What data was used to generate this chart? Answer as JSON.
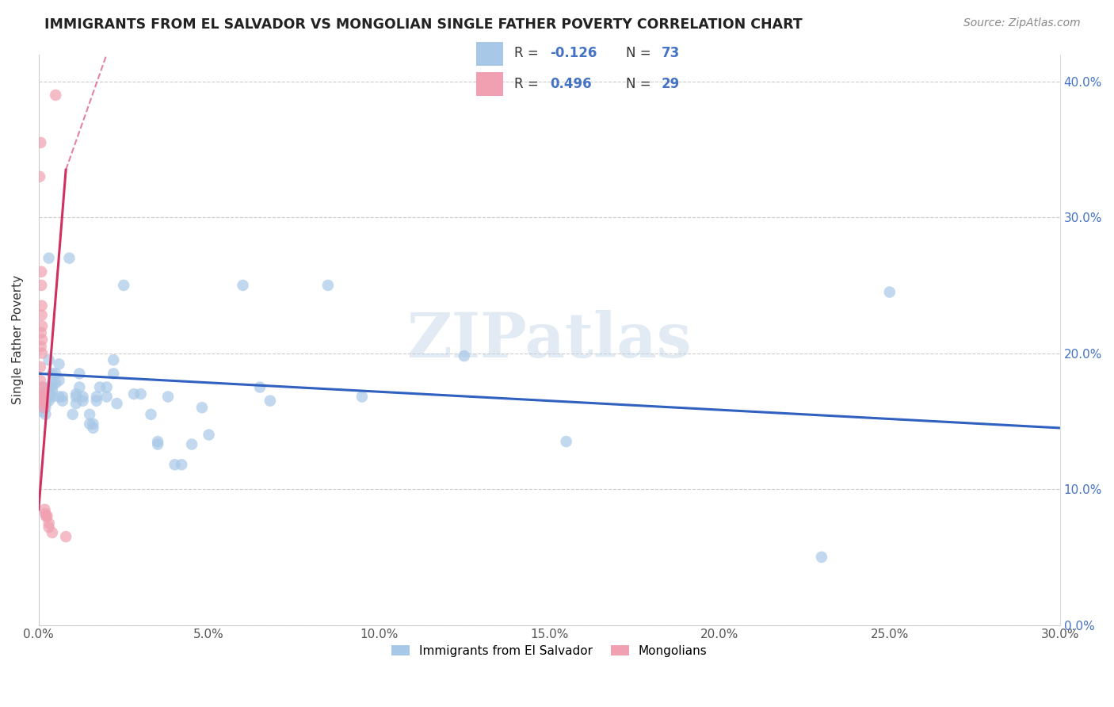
{
  "title": "IMMIGRANTS FROM EL SALVADOR VS MONGOLIAN SINGLE FATHER POVERTY CORRELATION CHART",
  "source": "Source: ZipAtlas.com",
  "ylabel": "Single Father Poverty",
  "xmin": 0.0,
  "xmax": 0.3,
  "ymin": 0.0,
  "ymax": 0.42,
  "xticks": [
    0.0,
    0.05,
    0.1,
    0.15,
    0.2,
    0.25,
    0.3
  ],
  "yticks": [
    0.0,
    0.1,
    0.2,
    0.3,
    0.4
  ],
  "blue_color": "#a8c8e8",
  "pink_color": "#f0a0b0",
  "blue_line_color": "#3060c0",
  "pink_line_color": "#d03060",
  "r_blue": -0.126,
  "n_blue": 73,
  "r_pink": 0.496,
  "n_pink": 29,
  "watermark": "ZIPatlas",
  "legend_label_blue": "Immigrants from El Salvador",
  "legend_label_pink": "Mongolians",
  "blue_points": [
    [
      0.001,
      0.175
    ],
    [
      0.001,
      0.168
    ],
    [
      0.001,
      0.165
    ],
    [
      0.001,
      0.162
    ],
    [
      0.001,
      0.16
    ],
    [
      0.001,
      0.157
    ],
    [
      0.002,
      0.172
    ],
    [
      0.002,
      0.17
    ],
    [
      0.002,
      0.168
    ],
    [
      0.002,
      0.163
    ],
    [
      0.002,
      0.16
    ],
    [
      0.002,
      0.155
    ],
    [
      0.003,
      0.27
    ],
    [
      0.003,
      0.195
    ],
    [
      0.003,
      0.175
    ],
    [
      0.003,
      0.172
    ],
    [
      0.003,
      0.17
    ],
    [
      0.003,
      0.168
    ],
    [
      0.003,
      0.165
    ],
    [
      0.004,
      0.185
    ],
    [
      0.004,
      0.178
    ],
    [
      0.004,
      0.175
    ],
    [
      0.004,
      0.172
    ],
    [
      0.004,
      0.168
    ],
    [
      0.005,
      0.185
    ],
    [
      0.005,
      0.178
    ],
    [
      0.006,
      0.192
    ],
    [
      0.006,
      0.18
    ],
    [
      0.006,
      0.168
    ],
    [
      0.007,
      0.165
    ],
    [
      0.007,
      0.168
    ],
    [
      0.009,
      0.27
    ],
    [
      0.01,
      0.155
    ],
    [
      0.011,
      0.17
    ],
    [
      0.011,
      0.168
    ],
    [
      0.011,
      0.163
    ],
    [
      0.012,
      0.185
    ],
    [
      0.012,
      0.175
    ],
    [
      0.013,
      0.168
    ],
    [
      0.013,
      0.165
    ],
    [
      0.015,
      0.155
    ],
    [
      0.015,
      0.148
    ],
    [
      0.016,
      0.148
    ],
    [
      0.016,
      0.145
    ],
    [
      0.017,
      0.168
    ],
    [
      0.017,
      0.165
    ],
    [
      0.018,
      0.175
    ],
    [
      0.02,
      0.175
    ],
    [
      0.02,
      0.168
    ],
    [
      0.022,
      0.195
    ],
    [
      0.022,
      0.185
    ],
    [
      0.023,
      0.163
    ],
    [
      0.025,
      0.25
    ],
    [
      0.028,
      0.17
    ],
    [
      0.03,
      0.17
    ],
    [
      0.033,
      0.155
    ],
    [
      0.035,
      0.135
    ],
    [
      0.035,
      0.133
    ],
    [
      0.038,
      0.168
    ],
    [
      0.04,
      0.118
    ],
    [
      0.042,
      0.118
    ],
    [
      0.045,
      0.133
    ],
    [
      0.048,
      0.16
    ],
    [
      0.05,
      0.14
    ],
    [
      0.06,
      0.25
    ],
    [
      0.065,
      0.175
    ],
    [
      0.068,
      0.165
    ],
    [
      0.085,
      0.25
    ],
    [
      0.095,
      0.168
    ],
    [
      0.125,
      0.198
    ],
    [
      0.155,
      0.135
    ],
    [
      0.23,
      0.05
    ],
    [
      0.25,
      0.245
    ]
  ],
  "pink_points": [
    [
      0.0003,
      0.33
    ],
    [
      0.0005,
      0.19
    ],
    [
      0.0005,
      0.18
    ],
    [
      0.0006,
      0.355
    ],
    [
      0.0007,
      0.215
    ],
    [
      0.0007,
      0.205
    ],
    [
      0.0008,
      0.26
    ],
    [
      0.0008,
      0.25
    ],
    [
      0.0009,
      0.235
    ],
    [
      0.0009,
      0.228
    ],
    [
      0.001,
      0.22
    ],
    [
      0.001,
      0.21
    ],
    [
      0.001,
      0.2
    ],
    [
      0.0012,
      0.175
    ],
    [
      0.0012,
      0.168
    ],
    [
      0.0014,
      0.165
    ],
    [
      0.0014,
      0.163
    ],
    [
      0.0015,
      0.16
    ],
    [
      0.0016,
      0.172
    ],
    [
      0.0016,
      0.168
    ],
    [
      0.0018,
      0.085
    ],
    [
      0.002,
      0.082
    ],
    [
      0.0022,
      0.08
    ],
    [
      0.0025,
      0.08
    ],
    [
      0.003,
      0.072
    ],
    [
      0.003,
      0.075
    ],
    [
      0.004,
      0.068
    ],
    [
      0.005,
      0.39
    ],
    [
      0.008,
      0.065
    ]
  ],
  "blue_trend": [
    0.0,
    0.185,
    0.3,
    0.145
  ],
  "pink_trend_solid": [
    0.0,
    0.085,
    0.008,
    0.335
  ],
  "pink_trend_dashed": [
    0.008,
    0.335,
    0.02,
    0.42
  ]
}
